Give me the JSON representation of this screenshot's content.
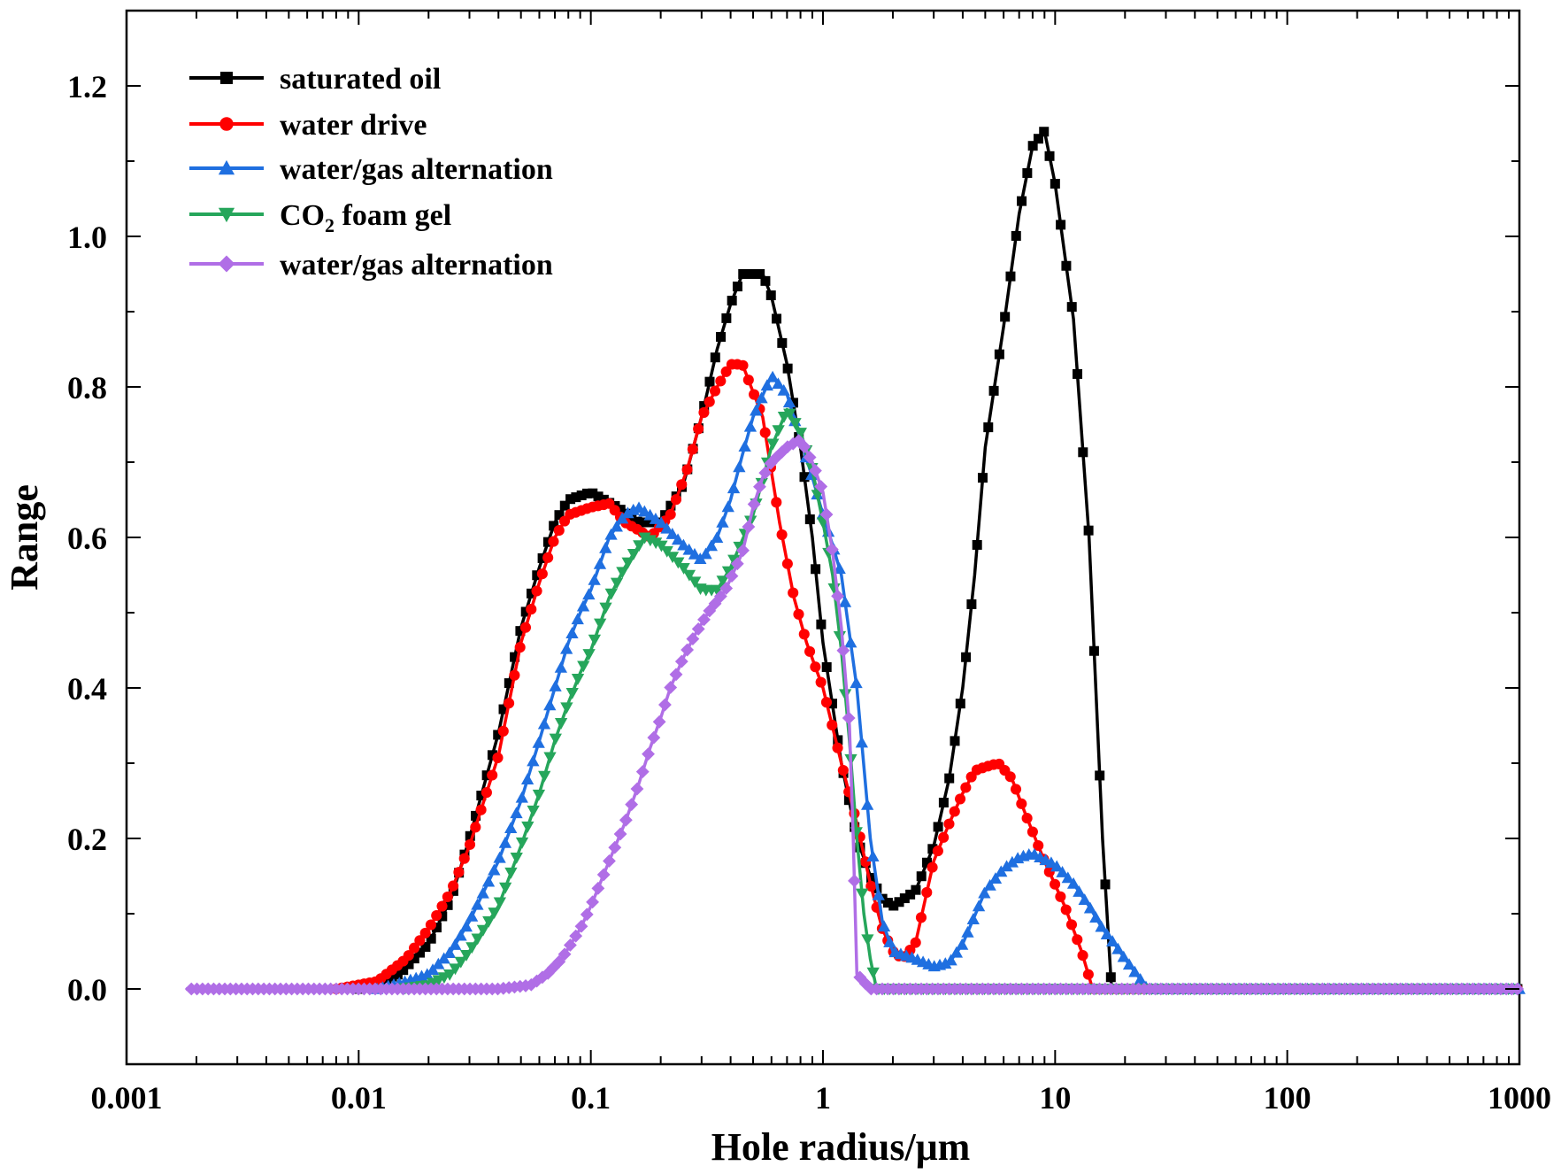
{
  "chart_data": {
    "type": "line",
    "title": "",
    "xlabel": "Hole radius/μm",
    "ylabel": "Range",
    "xscale": "log",
    "xlim": [
      0.001,
      1000
    ],
    "ylim": [
      -0.1,
      1.3
    ],
    "x_ticks": [
      {
        "value": 0.001,
        "label": "0.001"
      },
      {
        "value": 0.01,
        "label": "0.01"
      },
      {
        "value": 0.1,
        "label": "0.1"
      },
      {
        "value": 1,
        "label": "1"
      },
      {
        "value": 10,
        "label": "10"
      },
      {
        "value": 100,
        "label": "100"
      },
      {
        "value": 1000,
        "label": "1000"
      }
    ],
    "y_ticks": [
      {
        "value": 0.0,
        "label": "0.0"
      },
      {
        "value": 0.2,
        "label": "0.2"
      },
      {
        "value": 0.4,
        "label": "0.4"
      },
      {
        "value": 0.6,
        "label": "0.6"
      },
      {
        "value": 0.8,
        "label": "0.8"
      },
      {
        "value": 1.0,
        "label": "1.0"
      },
      {
        "value": 1.2,
        "label": "1.2"
      }
    ],
    "legend_position": "top-left",
    "series": [
      {
        "name": "saturated oil",
        "label_main": "saturated oil",
        "label_sub": "",
        "label_rest": "",
        "color": "#000000",
        "marker": "square",
        "points": [
          [
            0.01,
            0.0
          ],
          [
            0.015,
            0.02
          ],
          [
            0.02,
            0.06
          ],
          [
            0.025,
            0.12
          ],
          [
            0.03,
            0.2
          ],
          [
            0.04,
            0.34
          ],
          [
            0.05,
            0.48
          ],
          [
            0.06,
            0.56
          ],
          [
            0.07,
            0.62
          ],
          [
            0.08,
            0.65
          ],
          [
            0.1,
            0.66
          ],
          [
            0.13,
            0.64
          ],
          [
            0.16,
            0.62
          ],
          [
            0.2,
            0.62
          ],
          [
            0.25,
            0.67
          ],
          [
            0.3,
            0.76
          ],
          [
            0.35,
            0.85
          ],
          [
            0.4,
            0.91
          ],
          [
            0.45,
            0.95
          ],
          [
            0.55,
            0.95
          ],
          [
            0.6,
            0.92
          ],
          [
            0.7,
            0.83
          ],
          [
            0.8,
            0.72
          ],
          [
            0.9,
            0.6
          ],
          [
            1.0,
            0.46
          ],
          [
            1.2,
            0.3
          ],
          [
            1.4,
            0.2
          ],
          [
            1.6,
            0.15
          ],
          [
            1.8,
            0.12
          ],
          [
            2.0,
            0.11
          ],
          [
            2.5,
            0.13
          ],
          [
            3.0,
            0.19
          ],
          [
            3.5,
            0.28
          ],
          [
            4.0,
            0.4
          ],
          [
            4.5,
            0.55
          ],
          [
            5.0,
            0.72
          ],
          [
            6.0,
            0.88
          ],
          [
            7.0,
            1.03
          ],
          [
            8.0,
            1.12
          ],
          [
            9.0,
            1.14
          ],
          [
            10.0,
            1.07
          ],
          [
            12.0,
            0.89
          ],
          [
            14.0,
            0.6
          ],
          [
            16.0,
            0.2
          ],
          [
            17.5,
            0.0
          ],
          [
            1000,
            0.0
          ]
        ]
      },
      {
        "name": "water drive",
        "label_main": "water drive",
        "label_sub": "",
        "label_rest": "",
        "color": "#ff0000",
        "marker": "circle",
        "points": [
          [
            0.008,
            0.0
          ],
          [
            0.012,
            0.01
          ],
          [
            0.016,
            0.04
          ],
          [
            0.02,
            0.08
          ],
          [
            0.025,
            0.13
          ],
          [
            0.03,
            0.19
          ],
          [
            0.04,
            0.31
          ],
          [
            0.05,
            0.46
          ],
          [
            0.06,
            0.54
          ],
          [
            0.07,
            0.6
          ],
          [
            0.08,
            0.63
          ],
          [
            0.1,
            0.64
          ],
          [
            0.12,
            0.645
          ],
          [
            0.14,
            0.62
          ],
          [
            0.16,
            0.61
          ],
          [
            0.18,
            0.6
          ],
          [
            0.22,
            0.63
          ],
          [
            0.26,
            0.69
          ],
          [
            0.3,
            0.76
          ],
          [
            0.35,
            0.8
          ],
          [
            0.4,
            0.83
          ],
          [
            0.45,
            0.83
          ],
          [
            0.55,
            0.76
          ],
          [
            0.65,
            0.62
          ],
          [
            0.75,
            0.52
          ],
          [
            0.85,
            0.46
          ],
          [
            1.0,
            0.4
          ],
          [
            1.2,
            0.3
          ],
          [
            1.4,
            0.22
          ],
          [
            1.6,
            0.14
          ],
          [
            1.8,
            0.08
          ],
          [
            2.0,
            0.05
          ],
          [
            2.2,
            0.04
          ],
          [
            2.5,
            0.06
          ],
          [
            3.0,
            0.17
          ],
          [
            3.5,
            0.22
          ],
          [
            4.0,
            0.26
          ],
          [
            4.5,
            0.29
          ],
          [
            5.0,
            0.295
          ],
          [
            5.7,
            0.3
          ],
          [
            6.5,
            0.28
          ],
          [
            7.5,
            0.23
          ],
          [
            9.0,
            0.17
          ],
          [
            11.0,
            0.11
          ],
          [
            13.0,
            0.05
          ],
          [
            14.5,
            0.0
          ],
          [
            1000,
            0.0
          ]
        ]
      },
      {
        "name": "water/gas alternation",
        "label_main": "water/gas alternation",
        "label_sub": "",
        "label_rest": "",
        "color": "#1f6fe0",
        "marker": "triangle-up",
        "points": [
          [
            0.012,
            0.0
          ],
          [
            0.016,
            0.01
          ],
          [
            0.02,
            0.02
          ],
          [
            0.025,
            0.05
          ],
          [
            0.03,
            0.09
          ],
          [
            0.04,
            0.17
          ],
          [
            0.05,
            0.25
          ],
          [
            0.06,
            0.33
          ],
          [
            0.07,
            0.4
          ],
          [
            0.08,
            0.46
          ],
          [
            0.09,
            0.5
          ],
          [
            0.1,
            0.53
          ],
          [
            0.12,
            0.6
          ],
          [
            0.14,
            0.63
          ],
          [
            0.16,
            0.64
          ],
          [
            0.2,
            0.62
          ],
          [
            0.25,
            0.59
          ],
          [
            0.3,
            0.57
          ],
          [
            0.35,
            0.6
          ],
          [
            0.4,
            0.65
          ],
          [
            0.45,
            0.71
          ],
          [
            0.5,
            0.76
          ],
          [
            0.6,
            0.815
          ],
          [
            0.7,
            0.79
          ],
          [
            0.8,
            0.73
          ],
          [
            0.9,
            0.68
          ],
          [
            1.0,
            0.63
          ],
          [
            1.1,
            0.59
          ],
          [
            1.2,
            0.55
          ],
          [
            1.4,
            0.4
          ],
          [
            1.6,
            0.2
          ],
          [
            1.8,
            0.09
          ],
          [
            2.0,
            0.05
          ],
          [
            2.5,
            0.04
          ],
          [
            3.0,
            0.03
          ],
          [
            3.5,
            0.035
          ],
          [
            4.0,
            0.06
          ],
          [
            5.0,
            0.13
          ],
          [
            6.0,
            0.16
          ],
          [
            7.0,
            0.175
          ],
          [
            8.0,
            0.18
          ],
          [
            10.0,
            0.165
          ],
          [
            12.0,
            0.14
          ],
          [
            14.0,
            0.11
          ],
          [
            16.0,
            0.08
          ],
          [
            18.0,
            0.06
          ],
          [
            20.0,
            0.04
          ],
          [
            23.0,
            0.015
          ],
          [
            25.0,
            0.0
          ],
          [
            1000,
            0.0
          ]
        ]
      },
      {
        "name": "CO2 foam gel",
        "label_main": "CO",
        "label_sub": "2",
        "label_rest": " foam gel",
        "color": "#26a65b",
        "marker": "triangle-down",
        "points": [
          [
            0.015,
            0.0
          ],
          [
            0.02,
            0.005
          ],
          [
            0.025,
            0.02
          ],
          [
            0.03,
            0.05
          ],
          [
            0.04,
            0.11
          ],
          [
            0.05,
            0.19
          ],
          [
            0.06,
            0.26
          ],
          [
            0.07,
            0.33
          ],
          [
            0.08,
            0.38
          ],
          [
            0.09,
            0.42
          ],
          [
            0.1,
            0.45
          ],
          [
            0.12,
            0.52
          ],
          [
            0.14,
            0.56
          ],
          [
            0.17,
            0.6
          ],
          [
            0.2,
            0.59
          ],
          [
            0.25,
            0.56
          ],
          [
            0.3,
            0.53
          ],
          [
            0.35,
            0.53
          ],
          [
            0.4,
            0.56
          ],
          [
            0.5,
            0.63
          ],
          [
            0.6,
            0.72
          ],
          [
            0.7,
            0.77
          ],
          [
            0.8,
            0.74
          ],
          [
            0.9,
            0.69
          ],
          [
            1.0,
            0.62
          ],
          [
            1.1,
            0.55
          ],
          [
            1.2,
            0.45
          ],
          [
            1.3,
            0.33
          ],
          [
            1.4,
            0.2
          ],
          [
            1.5,
            0.1
          ],
          [
            1.6,
            0.04
          ],
          [
            1.7,
            0.0
          ],
          [
            1000,
            0.0
          ]
        ]
      },
      {
        "name": "water/gas alternation",
        "label_main": "water/gas alternation",
        "label_sub": "",
        "label_rest": "",
        "color": "#b06ee6",
        "marker": "diamond",
        "points": [
          [
            0.0018,
            0.0
          ],
          [
            0.04,
            0.0
          ],
          [
            0.055,
            0.005
          ],
          [
            0.065,
            0.02
          ],
          [
            0.075,
            0.04
          ],
          [
            0.09,
            0.08
          ],
          [
            0.1,
            0.11
          ],
          [
            0.12,
            0.17
          ],
          [
            0.14,
            0.22
          ],
          [
            0.16,
            0.27
          ],
          [
            0.18,
            0.32
          ],
          [
            0.2,
            0.36
          ],
          [
            0.22,
            0.4
          ],
          [
            0.25,
            0.44
          ],
          [
            0.28,
            0.47
          ],
          [
            0.32,
            0.5
          ],
          [
            0.38,
            0.53
          ],
          [
            0.45,
            0.58
          ],
          [
            0.5,
            0.64
          ],
          [
            0.55,
            0.68
          ],
          [
            0.6,
            0.7
          ],
          [
            0.7,
            0.72
          ],
          [
            0.8,
            0.73
          ],
          [
            0.9,
            0.7
          ],
          [
            1.0,
            0.66
          ],
          [
            1.1,
            0.58
          ],
          [
            1.2,
            0.48
          ],
          [
            1.3,
            0.35
          ],
          [
            1.35,
            0.2
          ],
          [
            1.4,
            0.02
          ],
          [
            1.6,
            0.0
          ],
          [
            1000,
            0.0
          ]
        ]
      }
    ]
  }
}
